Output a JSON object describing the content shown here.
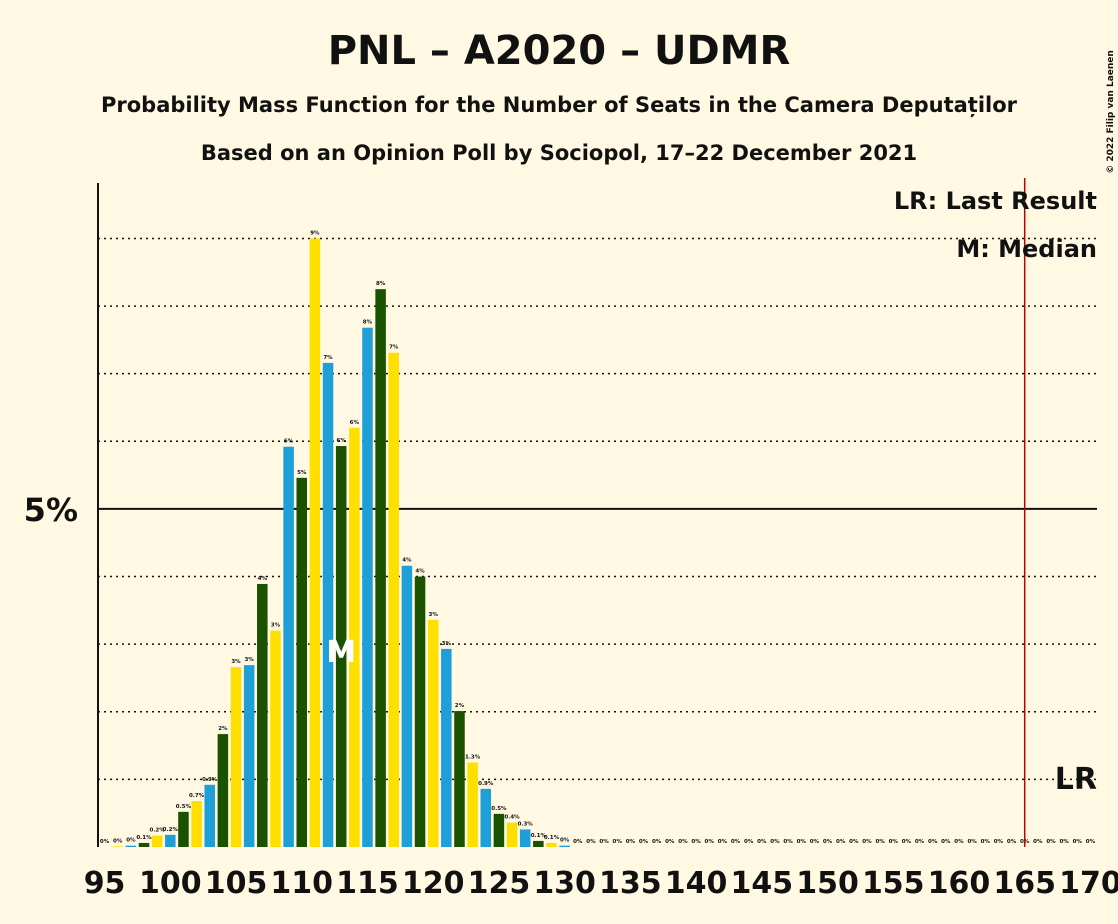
{
  "chart_data": {
    "type": "bar",
    "title": "PNL – A2020 – UDMR",
    "subtitle": "Probability Mass Function for the Number of Seats in the Camera Deputaților",
    "subtitle2": "Based on an Opinion Poll by Sociopol, 17–22 December 2021",
    "copyright": "© 2022 Filip van Laenen",
    "x": [
      95,
      96,
      97,
      98,
      99,
      100,
      101,
      102,
      103,
      104,
      105,
      106,
      107,
      108,
      109,
      110,
      111,
      112,
      113,
      114,
      115,
      116,
      117,
      118,
      119,
      120,
      121,
      122,
      123,
      124,
      125,
      126,
      127,
      128,
      129,
      130,
      131,
      132,
      133,
      134,
      135,
      136,
      137,
      138,
      139,
      140,
      141,
      142,
      143,
      144,
      145,
      146,
      147,
      148,
      149,
      150,
      151,
      152,
      153,
      154,
      155,
      156,
      157,
      158,
      159,
      160,
      161,
      162,
      163,
      164,
      165,
      166,
      167,
      168,
      169,
      170
    ],
    "values": [
      0,
      0.01,
      0.02,
      0.06,
      0.17,
      0.18,
      0.52,
      0.68,
      0.92,
      1.67,
      2.66,
      2.69,
      3.89,
      3.2,
      5.92,
      5.46,
      9.0,
      7.16,
      5.93,
      6.2,
      7.68,
      8.25,
      7.31,
      4.16,
      4.0,
      3.36,
      2.93,
      2.01,
      1.25,
      0.86,
      0.49,
      0.36,
      0.26,
      0.09,
      0.06,
      0.02,
      0,
      0,
      0,
      0,
      0,
      0,
      0,
      0,
      0,
      0,
      0,
      0,
      0,
      0,
      0,
      0,
      0,
      0,
      0,
      0,
      0,
      0,
      0,
      0,
      0,
      0,
      0,
      0,
      0,
      0,
      0,
      0,
      0,
      0,
      0,
      0,
      0,
      0,
      0,
      0
    ],
    "value_labels": [
      "0%",
      "0%",
      "0%",
      "0.1%",
      "0.2%",
      "0.2%",
      "0.5%",
      "0.7%",
      "0.9%",
      "2%",
      "3%",
      "3%",
      "4%",
      "3%",
      "6%",
      "5%",
      "9%",
      "7%",
      "6%",
      "6%",
      "8%",
      "8%",
      "7%",
      "4%",
      "4%",
      "3%",
      "3%",
      "2%",
      "1.3%",
      "0.9%",
      "0.5%",
      "0.4%",
      "0.3%",
      "0.1%",
      "0.1%",
      "0%",
      "0%",
      "0%",
      "0%",
      "0%",
      "0%",
      "0%",
      "0%",
      "0%",
      "0%",
      "0%",
      "0%",
      "0%",
      "0%",
      "0%",
      "0%",
      "0%",
      "0%",
      "0%",
      "0%",
      "0%",
      "0%",
      "0%",
      "0%",
      "0%",
      "0%",
      "0%",
      "0%",
      "0%",
      "0%",
      "0%",
      "0%",
      "0%",
      "0%",
      "0%",
      "0%",
      "0%",
      "0%",
      "0%",
      "0%",
      "0%"
    ],
    "bar_colors": [
      "#ffdf00",
      "#1e9fd8",
      "#1a5200"
    ],
    "xlim": [
      94.5,
      170.5
    ],
    "xticks": [
      95,
      100,
      105,
      110,
      115,
      120,
      125,
      130,
      135,
      140,
      145,
      150,
      155,
      160,
      165,
      170
    ],
    "ylim": [
      0,
      9.82
    ],
    "yticks": [
      {
        "value": 5,
        "label": "5%"
      }
    ],
    "minor_gridlines": [
      1,
      2,
      3,
      4,
      6,
      7,
      8,
      9
    ],
    "median": 113,
    "median_label": "M",
    "last_result": 165,
    "last_result_label": "LR",
    "legend": [
      "LR: Last Result",
      "M: Median"
    ]
  }
}
